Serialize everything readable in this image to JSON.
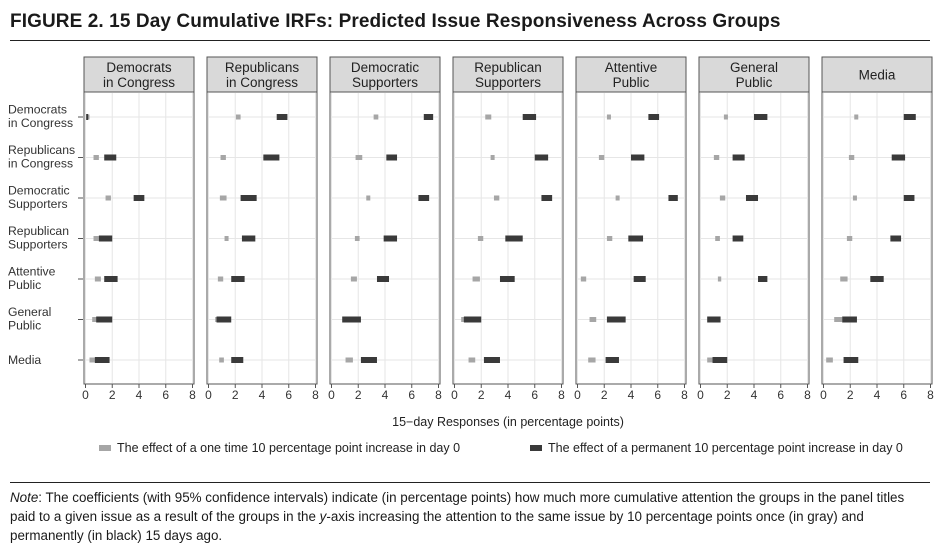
{
  "figure": {
    "title": "FIGURE 2.   15 Day Cumulative IRFs: Predicted Issue Responsiveness Across Groups",
    "note_label": "Note",
    "note_text": ": The coefficients (with 95% confidence intervals) indicate (in percentage points) how much more cumulative attention the groups in the panel titles paid to a given issue as a result of the groups in the ",
    "note_italic": "y",
    "note_text2": "-axis increasing the attention to the same issue by 10 percentage points once (in gray) and permanently (in black) 15 days ago."
  },
  "colors": {
    "one_time": "#a6a6a6",
    "permanent": "#3a3a3a",
    "panel_header_bg": "#d9d9d9",
    "grid": "#e6e6e6",
    "panel_border": "#555555"
  },
  "chart_data": {
    "type": "dot-interval",
    "xlabel": "15−day Responses (in percentage points)",
    "xlim": [
      0,
      8
    ],
    "xticks": [
      0,
      2,
      4,
      6,
      8
    ],
    "legend_position": "bottom",
    "grid": true,
    "panels": [
      "Democrats\nin Congress",
      "Republicans\nin Congress",
      "Democratic\nSupporters",
      "Republican\nSupporters",
      "Attentive\nPublic",
      "General\nPublic",
      "Media"
    ],
    "rows": [
      "Democrats\nin Congress",
      "Republicans\nin Congress",
      "Democratic\nSupporters",
      "Republican\nSupporters",
      "Attentive\nPublic",
      "General\nPublic",
      "Media"
    ],
    "series": [
      {
        "name": "The effect of a one time 10 percentage point increase in day 0",
        "intervals": [
          [
            [
              0.15,
              0.3
            ],
            [
              2.05,
              2.4
            ],
            [
              3.15,
              3.5
            ],
            [
              2.3,
              2.75
            ],
            [
              2.2,
              2.5
            ],
            [
              1.75,
              2.05
            ],
            [
              2.3,
              2.6
            ]
          ],
          [
            [
              0.6,
              1.0
            ],
            [
              0.9,
              1.3
            ],
            [
              1.8,
              2.3
            ],
            [
              2.7,
              3.0
            ],
            [
              1.6,
              2.0
            ],
            [
              1.0,
              1.4
            ],
            [
              1.9,
              2.3
            ]
          ],
          [
            [
              1.5,
              1.9
            ],
            [
              0.85,
              1.35
            ],
            [
              2.6,
              2.9
            ],
            [
              2.95,
              3.35
            ],
            [
              2.85,
              3.15
            ],
            [
              1.45,
              1.85
            ],
            [
              2.2,
              2.5
            ]
          ],
          [
            [
              0.6,
              1.0
            ],
            [
              1.2,
              1.5
            ],
            [
              1.75,
              2.1
            ],
            [
              1.75,
              2.15
            ],
            [
              2.2,
              2.6
            ],
            [
              1.1,
              1.45
            ],
            [
              1.75,
              2.15
            ]
          ],
          [
            [
              0.7,
              1.15
            ],
            [
              0.7,
              1.1
            ],
            [
              1.45,
              1.9
            ],
            [
              1.35,
              1.9
            ],
            [
              0.25,
              0.65
            ],
            [
              1.3,
              1.55
            ],
            [
              1.25,
              1.8
            ]
          ],
          [
            [
              0.5,
              1.0
            ],
            [
              0.5,
              0.85
            ],
            [
              0.9,
              1.6
            ],
            [
              0.5,
              1.15
            ],
            [
              0.9,
              1.4
            ],
            [
              0.6,
              0.9
            ],
            [
              0.8,
              1.4
            ]
          ],
          [
            [
              0.3,
              0.8
            ],
            [
              0.8,
              1.15
            ],
            [
              1.05,
              1.6
            ],
            [
              1.05,
              1.55
            ],
            [
              0.8,
              1.35
            ],
            [
              0.5,
              0.95
            ],
            [
              0.2,
              0.7
            ]
          ]
        ]
      },
      {
        "name": "The effect of a permanent 10 percentage point increase in day 0",
        "intervals": [
          [
            [
              0.05,
              0.2
            ],
            [
              5.1,
              5.9
            ],
            [
              6.9,
              7.6
            ],
            [
              5.1,
              6.1
            ],
            [
              5.3,
              6.1
            ],
            [
              4.0,
              5.0
            ],
            [
              6.0,
              6.9
            ]
          ],
          [
            [
              1.4,
              2.3
            ],
            [
              4.1,
              5.3
            ],
            [
              4.1,
              4.9
            ],
            [
              6.0,
              7.0
            ],
            [
              4.0,
              5.0
            ],
            [
              2.4,
              3.3
            ],
            [
              5.1,
              6.1
            ]
          ],
          [
            [
              3.6,
              4.4
            ],
            [
              2.4,
              3.6
            ],
            [
              6.5,
              7.3
            ],
            [
              6.5,
              7.3
            ],
            [
              6.8,
              7.5
            ],
            [
              3.4,
              4.3
            ],
            [
              6.0,
              6.8
            ]
          ],
          [
            [
              1.0,
              2.0
            ],
            [
              2.5,
              3.5
            ],
            [
              3.9,
              4.9
            ],
            [
              3.8,
              5.1
            ],
            [
              3.8,
              4.9
            ],
            [
              2.4,
              3.2
            ],
            [
              5.0,
              5.8
            ]
          ],
          [
            [
              1.4,
              2.4
            ],
            [
              1.7,
              2.7
            ],
            [
              3.4,
              4.3
            ],
            [
              3.4,
              4.5
            ],
            [
              4.2,
              5.1
            ],
            [
              4.3,
              5.0
            ],
            [
              3.5,
              4.5
            ]
          ],
          [
            [
              0.8,
              2.0
            ],
            [
              0.6,
              1.7
            ],
            [
              0.8,
              2.2
            ],
            [
              0.7,
              2.0
            ],
            [
              2.2,
              3.6
            ],
            [
              0.5,
              1.5
            ],
            [
              1.4,
              2.5
            ]
          ],
          [
            [
              0.7,
              1.8
            ],
            [
              1.7,
              2.6
            ],
            [
              2.2,
              3.4
            ],
            [
              2.2,
              3.4
            ],
            [
              2.1,
              3.1
            ],
            [
              0.9,
              2.0
            ],
            [
              1.5,
              2.6
            ]
          ]
        ]
      }
    ]
  }
}
